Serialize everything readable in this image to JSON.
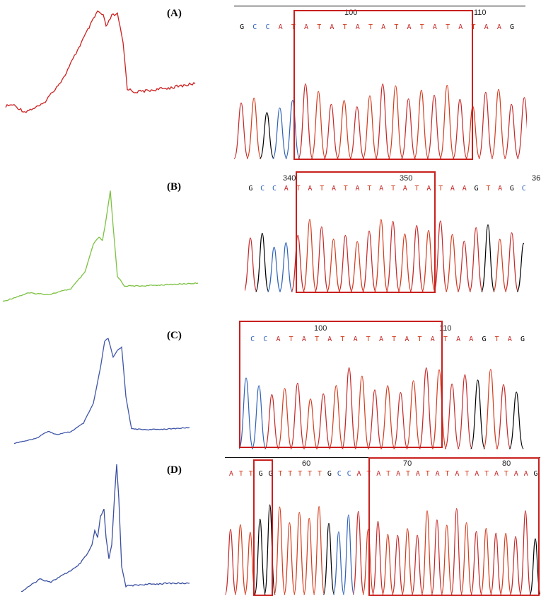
{
  "colors": {
    "A": "#c62626",
    "C": "#2f62b8",
    "G": "#000000",
    "T": "#d43b1c",
    "box": "#c8201e",
    "meltA": "#cc1f1f",
    "meltB": "#7cc142",
    "meltC": "#3f56a8",
    "meltD": "#3a4fa0"
  },
  "panels": [
    {
      "label": "(A)",
      "positions": [
        "100",
        "110"
      ],
      "sequence": "GCCATATATATATATATATAAG"
    },
    {
      "label": "(B)",
      "positions": [
        "340",
        "350",
        "36"
      ],
      "sequence": "GCCATATATATATATATAAGTAGC"
    },
    {
      "label": "(C)",
      "positions": [
        "100",
        "110"
      ],
      "sequence": "CCATATATATATATATAAGTAG"
    },
    {
      "label": "(D)",
      "positions": [
        "60",
        "70",
        "80"
      ],
      "sequence": "ATTGGTTTTTGCCATATATATATATATATAAG"
    }
  ]
}
